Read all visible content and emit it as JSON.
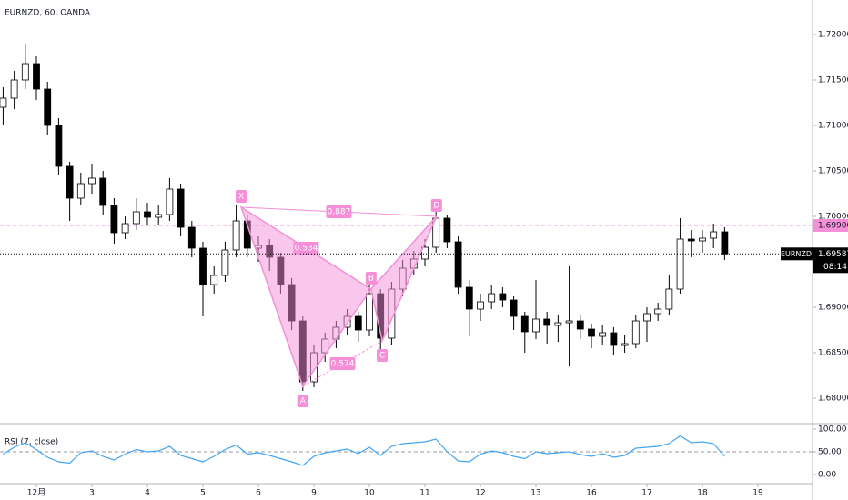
{
  "chart_data": {
    "type": "candlestick",
    "title": "EURNZD, 60, OANDA",
    "up_color": "#ffffff",
    "down_color": "#000000",
    "xlim": [
      -0.656,
      13.443
    ],
    "xticks": [
      {
        "value": 0,
        "label": "12月"
      },
      {
        "value": 1,
        "label": "3"
      },
      {
        "value": 2,
        "label": "4"
      },
      {
        "value": 3,
        "label": "5"
      },
      {
        "value": 4,
        "label": "6"
      },
      {
        "value": 5,
        "label": "9"
      },
      {
        "value": 6,
        "label": "10"
      },
      {
        "value": 7,
        "label": "11"
      },
      {
        "value": 8,
        "label": "12"
      },
      {
        "value": 9,
        "label": "13"
      },
      {
        "value": 10,
        "label": "16"
      },
      {
        "value": 11,
        "label": "17"
      },
      {
        "value": 12,
        "label": "18"
      },
      {
        "value": 13,
        "label": "19"
      }
    ],
    "ylim": [
      1.6772,
      1.7238
    ],
    "yticks": [
      {
        "value": 1.72,
        "label": "1.72000"
      },
      {
        "value": 1.715,
        "label": "1.71500"
      },
      {
        "value": 1.71,
        "label": "1.71000"
      },
      {
        "value": 1.705,
        "label": "1.70500"
      },
      {
        "value": 1.7,
        "label": "1.70000"
      },
      {
        "value": 1.69,
        "label": "1.69000"
      },
      {
        "value": 1.685,
        "label": "1.68500"
      },
      {
        "value": 1.68,
        "label": "1.68000"
      }
    ],
    "x": [
      -0.6,
      -0.4,
      -0.2,
      0,
      0.2,
      0.4,
      0.6,
      0.8,
      1,
      1.2,
      1.4,
      1.6,
      1.8,
      2,
      2.2,
      2.4,
      2.6,
      2.8,
      3,
      3.2,
      3.4,
      3.6,
      3.8,
      4,
      4.2,
      4.4,
      4.6,
      4.8,
      5,
      5.2,
      5.4,
      5.6,
      5.8,
      6,
      6.2,
      6.4,
      6.6,
      6.8,
      7,
      7.2,
      7.4,
      7.6,
      7.8,
      8,
      8.2,
      8.4,
      8.6,
      8.8,
      9,
      9.2,
      9.4,
      9.6,
      9.8,
      10,
      10.2,
      10.4,
      10.6,
      10.8,
      11,
      11.2,
      11.4,
      11.6,
      11.8,
      12,
      12.2,
      12.4
    ],
    "ohlc": [
      [
        1.712,
        1.7142,
        1.71,
        1.713
      ],
      [
        1.713,
        1.716,
        1.7118,
        1.715
      ],
      [
        1.715,
        1.719,
        1.714,
        1.7168
      ],
      [
        1.7168,
        1.7176,
        1.7128,
        1.714
      ],
      [
        1.714,
        1.7148,
        1.709,
        1.71
      ],
      [
        1.71,
        1.7108,
        1.7045,
        1.7055
      ],
      [
        1.7055,
        1.706,
        1.6995,
        1.702
      ],
      [
        1.702,
        1.7048,
        1.7012,
        1.7036
      ],
      [
        1.7036,
        1.7058,
        1.7025,
        1.7042
      ],
      [
        1.7042,
        1.705,
        1.7002,
        1.7012
      ],
      [
        1.7012,
        1.702,
        1.697,
        1.6982
      ],
      [
        1.6982,
        1.7,
        1.6975,
        1.6992
      ],
      [
        1.6992,
        1.702,
        1.6985,
        1.7005
      ],
      [
        1.7005,
        1.7015,
        1.699,
        1.6999
      ],
      [
        1.6999,
        1.7012,
        1.699,
        1.7002
      ],
      [
        1.7002,
        1.7042,
        1.6995,
        1.703
      ],
      [
        1.703,
        1.7036,
        1.6978,
        1.6988
      ],
      [
        1.6988,
        1.6995,
        1.6955,
        1.6965
      ],
      [
        1.6965,
        1.6972,
        1.689,
        1.6925
      ],
      [
        1.6925,
        1.6945,
        1.6915,
        1.6935
      ],
      [
        1.6935,
        1.6972,
        1.6928,
        1.6963
      ],
      [
        1.6963,
        1.7012,
        1.6955,
        1.6995
      ],
      [
        1.6995,
        1.7002,
        1.6955,
        1.6965
      ],
      [
        1.6965,
        1.6978,
        1.695,
        1.6968
      ],
      [
        1.6968,
        1.6975,
        1.694,
        1.6955
      ],
      [
        1.6955,
        1.696,
        1.6915,
        1.6925
      ],
      [
        1.6925,
        1.6932,
        1.6875,
        1.6885
      ],
      [
        1.6885,
        1.689,
        1.6808,
        1.6818
      ],
      [
        1.6818,
        1.6858,
        1.6812,
        1.685
      ],
      [
        1.685,
        1.6872,
        1.684,
        1.6865
      ],
      [
        1.6865,
        1.6885,
        1.6855,
        1.6878
      ],
      [
        1.6878,
        1.6898,
        1.687,
        1.689
      ],
      [
        1.689,
        1.6895,
        1.6862,
        1.6875
      ],
      [
        1.6875,
        1.6925,
        1.6868,
        1.6915
      ],
      [
        1.6915,
        1.692,
        1.6852,
        1.6866
      ],
      [
        1.6866,
        1.6928,
        1.6858,
        1.692
      ],
      [
        1.692,
        1.6952,
        1.6912,
        1.6943
      ],
      [
        1.6943,
        1.6962,
        1.6935,
        1.6953
      ],
      [
        1.6953,
        1.6975,
        1.6945,
        1.6966
      ],
      [
        1.6966,
        1.7005,
        1.696,
        1.6998
      ],
      [
        1.6998,
        1.7002,
        1.6965,
        1.6972
      ],
      [
        1.6972,
        1.6978,
        1.6915,
        1.6922
      ],
      [
        1.6922,
        1.693,
        1.6868,
        1.6898
      ],
      [
        1.6898,
        1.6915,
        1.6885,
        1.6906
      ],
      [
        1.6906,
        1.6925,
        1.6898,
        1.6915
      ],
      [
        1.6915,
        1.6922,
        1.69,
        1.6908
      ],
      [
        1.6908,
        1.6912,
        1.6875,
        1.689
      ],
      [
        1.689,
        1.6895,
        1.685,
        1.6873
      ],
      [
        1.6873,
        1.693,
        1.6865,
        1.6887
      ],
      [
        1.6887,
        1.6895,
        1.686,
        1.688
      ],
      [
        1.688,
        1.6892,
        1.6862,
        1.6883
      ],
      [
        1.6883,
        1.6945,
        1.6835,
        1.6885
      ],
      [
        1.6885,
        1.6892,
        1.6865,
        1.6876
      ],
      [
        1.6876,
        1.6882,
        1.6855,
        1.6868
      ],
      [
        1.6868,
        1.688,
        1.6858,
        1.6872
      ],
      [
        1.6872,
        1.6878,
        1.6848,
        1.6858
      ],
      [
        1.6858,
        1.687,
        1.685,
        1.686
      ],
      [
        1.686,
        1.6892,
        1.6855,
        1.6885
      ],
      [
        1.6885,
        1.69,
        1.6862,
        1.6893
      ],
      [
        1.6893,
        1.6905,
        1.6885,
        1.6898
      ],
      [
        1.6898,
        1.6935,
        1.6892,
        1.692
      ],
      [
        1.692,
        1.6998,
        1.6915,
        1.6975
      ],
      [
        1.6975,
        1.6985,
        1.6955,
        1.6973
      ],
      [
        1.6973,
        1.6985,
        1.696,
        1.6976
      ],
      [
        1.6976,
        1.6992,
        1.6965,
        1.6983
      ],
      [
        1.6983,
        1.6988,
        1.6952,
        1.69587
      ]
    ],
    "symbol": "EURNZD",
    "last_price": 1.69587,
    "countdown": "08:14",
    "resistance": {
      "value": 1.699,
      "label": "1.69900",
      "color": "#f48fd8"
    },
    "pattern": {
      "color": "#f48fd8",
      "points": [
        {
          "label": "X",
          "x": 3.69,
          "price": 1.701
        },
        {
          "label": "A",
          "x": 4.8,
          "price": 1.6813
        },
        {
          "label": "B",
          "x": 6.03,
          "price": 1.692
        },
        {
          "label": "C",
          "x": 6.23,
          "price": 1.6863
        },
        {
          "label": "D",
          "x": 7.21,
          "price": 1.7
        }
      ],
      "ratios": [
        "0.887",
        "0.534",
        "0.574"
      ]
    },
    "rsi": {
      "name": "RSI (7, close)",
      "color": "#42a5f5",
      "ylim": [
        -20,
        112
      ],
      "yticks": [
        {
          "value": 100,
          "label": "100.00"
        },
        {
          "value": 50,
          "label": "50.00"
        },
        {
          "value": 0,
          "label": "0.00"
        }
      ],
      "values": [
        45,
        60,
        70,
        55,
        38,
        28,
        25,
        48,
        52,
        40,
        32,
        45,
        55,
        50,
        52,
        62,
        42,
        35,
        28,
        40,
        55,
        65,
        45,
        48,
        42,
        35,
        28,
        20,
        40,
        48,
        52,
        56,
        46,
        60,
        42,
        62,
        68,
        70,
        72,
        78,
        50,
        30,
        28,
        45,
        52,
        48,
        40,
        35,
        50,
        46,
        48,
        50,
        44,
        40,
        46,
        38,
        42,
        58,
        60,
        62,
        68,
        85,
        70,
        72,
        68,
        40
      ]
    }
  }
}
